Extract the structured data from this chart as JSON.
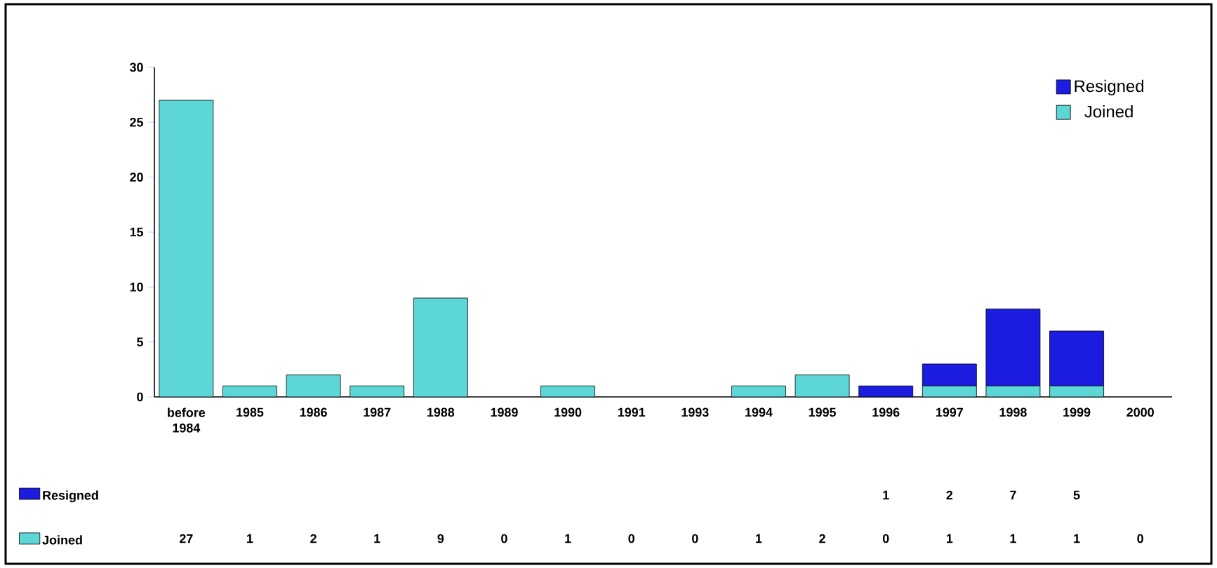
{
  "chart_data": {
    "type": "bar",
    "stacked": true,
    "categories": [
      "before 1984",
      "1985",
      "1986",
      "1987",
      "1988",
      "1989",
      "1990",
      "1991",
      "1993",
      "1994",
      "1995",
      "1996",
      "1997",
      "1998",
      "1999",
      "2000"
    ],
    "series": [
      {
        "name": "Joined",
        "color": "#5cd6d6",
        "values": [
          27,
          1,
          2,
          1,
          9,
          0,
          1,
          0,
          0,
          1,
          2,
          0,
          1,
          1,
          1,
          0
        ]
      },
      {
        "name": "Resigned",
        "color": "#1c1ce0",
        "values": [
          null,
          null,
          null,
          null,
          null,
          null,
          null,
          null,
          null,
          null,
          null,
          1,
          2,
          7,
          5,
          null
        ]
      }
    ],
    "ylim": [
      0,
      30
    ],
    "yticks": [
      0,
      5,
      10,
      15,
      20,
      25,
      30
    ],
    "legend": "top right",
    "data_labels": true
  }
}
